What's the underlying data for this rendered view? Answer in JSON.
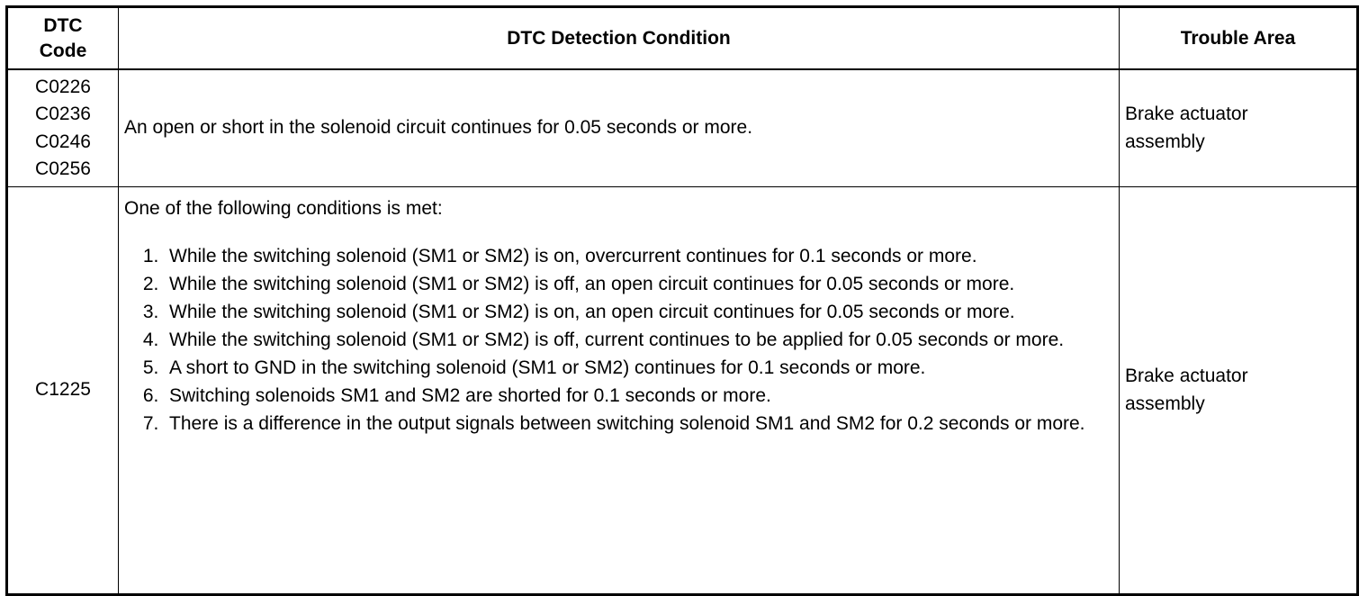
{
  "table": {
    "headers": {
      "code": "DTC\nCode",
      "code_line1": "DTC",
      "code_line2": "Code",
      "condition": "DTC Detection Condition",
      "area": "Trouble Area"
    },
    "rows": [
      {
        "codes": [
          "C0226",
          "C0236",
          "C0246",
          "C0256"
        ],
        "condition": "An open or short in the solenoid circuit continues for 0.05 seconds or more.",
        "area_line1": "Brake actuator",
        "area_line2": "assembly"
      },
      {
        "codes": [
          "C1225"
        ],
        "condition_intro": "One of the following conditions is met:",
        "conditions": [
          {
            "num": "1.",
            "text": "While the switching solenoid (SM1 or SM2) is on, overcurrent continues for 0.1 seconds or more."
          },
          {
            "num": "2.",
            "text": "While the switching solenoid (SM1 or SM2) is off, an open circuit continues for 0.05 seconds or more."
          },
          {
            "num": "3.",
            "text": "While the switching solenoid (SM1 or SM2) is on, an open circuit continues for 0.05 seconds or more."
          },
          {
            "num": "4.",
            "text": "While the switching solenoid (SM1 or SM2) is off, current continues to be applied for 0.05 seconds or more."
          },
          {
            "num": "5.",
            "text": "A short to GND in the switching solenoid (SM1 or SM2) continues for 0.1 seconds or more."
          },
          {
            "num": "6.",
            "text": "Switching solenoids SM1 and SM2 are shorted for 0.1 seconds or more."
          },
          {
            "num": "7.",
            "text": "There is a difference in the output signals between switching solenoid SM1 and SM2 for 0.2 seconds or more."
          }
        ],
        "area_line1": "Brake actuator",
        "area_line2": "assembly"
      }
    ]
  }
}
